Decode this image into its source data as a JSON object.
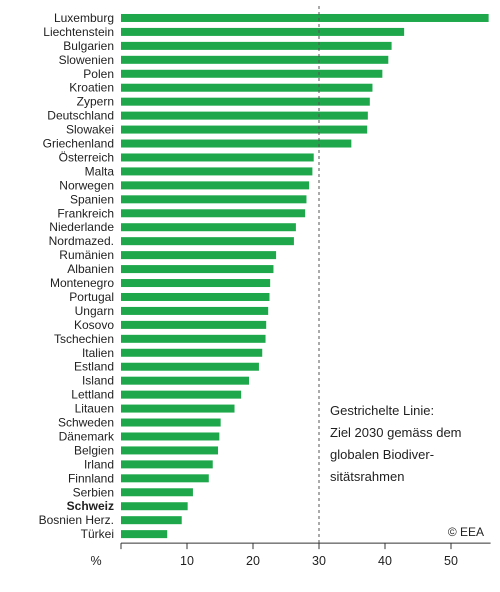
{
  "chart_data": {
    "type": "bar",
    "orientation": "horizontal",
    "categories": [
      "Luxemburg",
      "Liechtenstein",
      "Bulgarien",
      "Slowenien",
      "Polen",
      "Kroatien",
      "Zypern",
      "Deutschland",
      "Slowakei",
      "Griechenland",
      "Österreich",
      "Malta",
      "Norwegen",
      "Spanien",
      "Frankreich",
      "Niederlande",
      "Nordmazed.",
      "Rumänien",
      "Albanien",
      "Montenegro",
      "Portugal",
      "Ungarn",
      "Kosovo",
      "Tschechien",
      "Italien",
      "Estland",
      "Island",
      "Lettland",
      "Litauen",
      "Schweden",
      "Dänemark",
      "Belgien",
      "Irland",
      "Finnland",
      "Serbien",
      "Schweiz",
      "Bosnien Herz.",
      "Türkei"
    ],
    "values": [
      55.7,
      42.9,
      41.0,
      40.5,
      39.6,
      38.1,
      37.7,
      37.4,
      37.3,
      34.9,
      29.2,
      29.0,
      28.5,
      28.1,
      27.9,
      26.5,
      26.2,
      23.5,
      23.1,
      22.6,
      22.5,
      22.3,
      22.0,
      21.9,
      21.4,
      20.9,
      19.4,
      18.2,
      17.2,
      15.1,
      14.9,
      14.7,
      13.9,
      13.3,
      10.9,
      10.1,
      9.2,
      7.0
    ],
    "highlight_category": "Schweiz",
    "xlabel": "%",
    "xlim": [
      0,
      56
    ],
    "xticks": [
      10,
      20,
      30,
      40,
      50
    ],
    "reference_line": {
      "value": 30,
      "style": "dashed"
    },
    "grid": false,
    "colors": {
      "bar": "#1ea84b",
      "highlight_label": "#b5633f",
      "text": "#1f1f1f",
      "axis": "#333333"
    }
  },
  "annotation": {
    "lines": [
      "Gestrichelte Linie:",
      "Ziel 2030 gemäss dem",
      "globalen Biodiver-",
      "sitätsrahmen"
    ]
  },
  "credit": "© EEA"
}
